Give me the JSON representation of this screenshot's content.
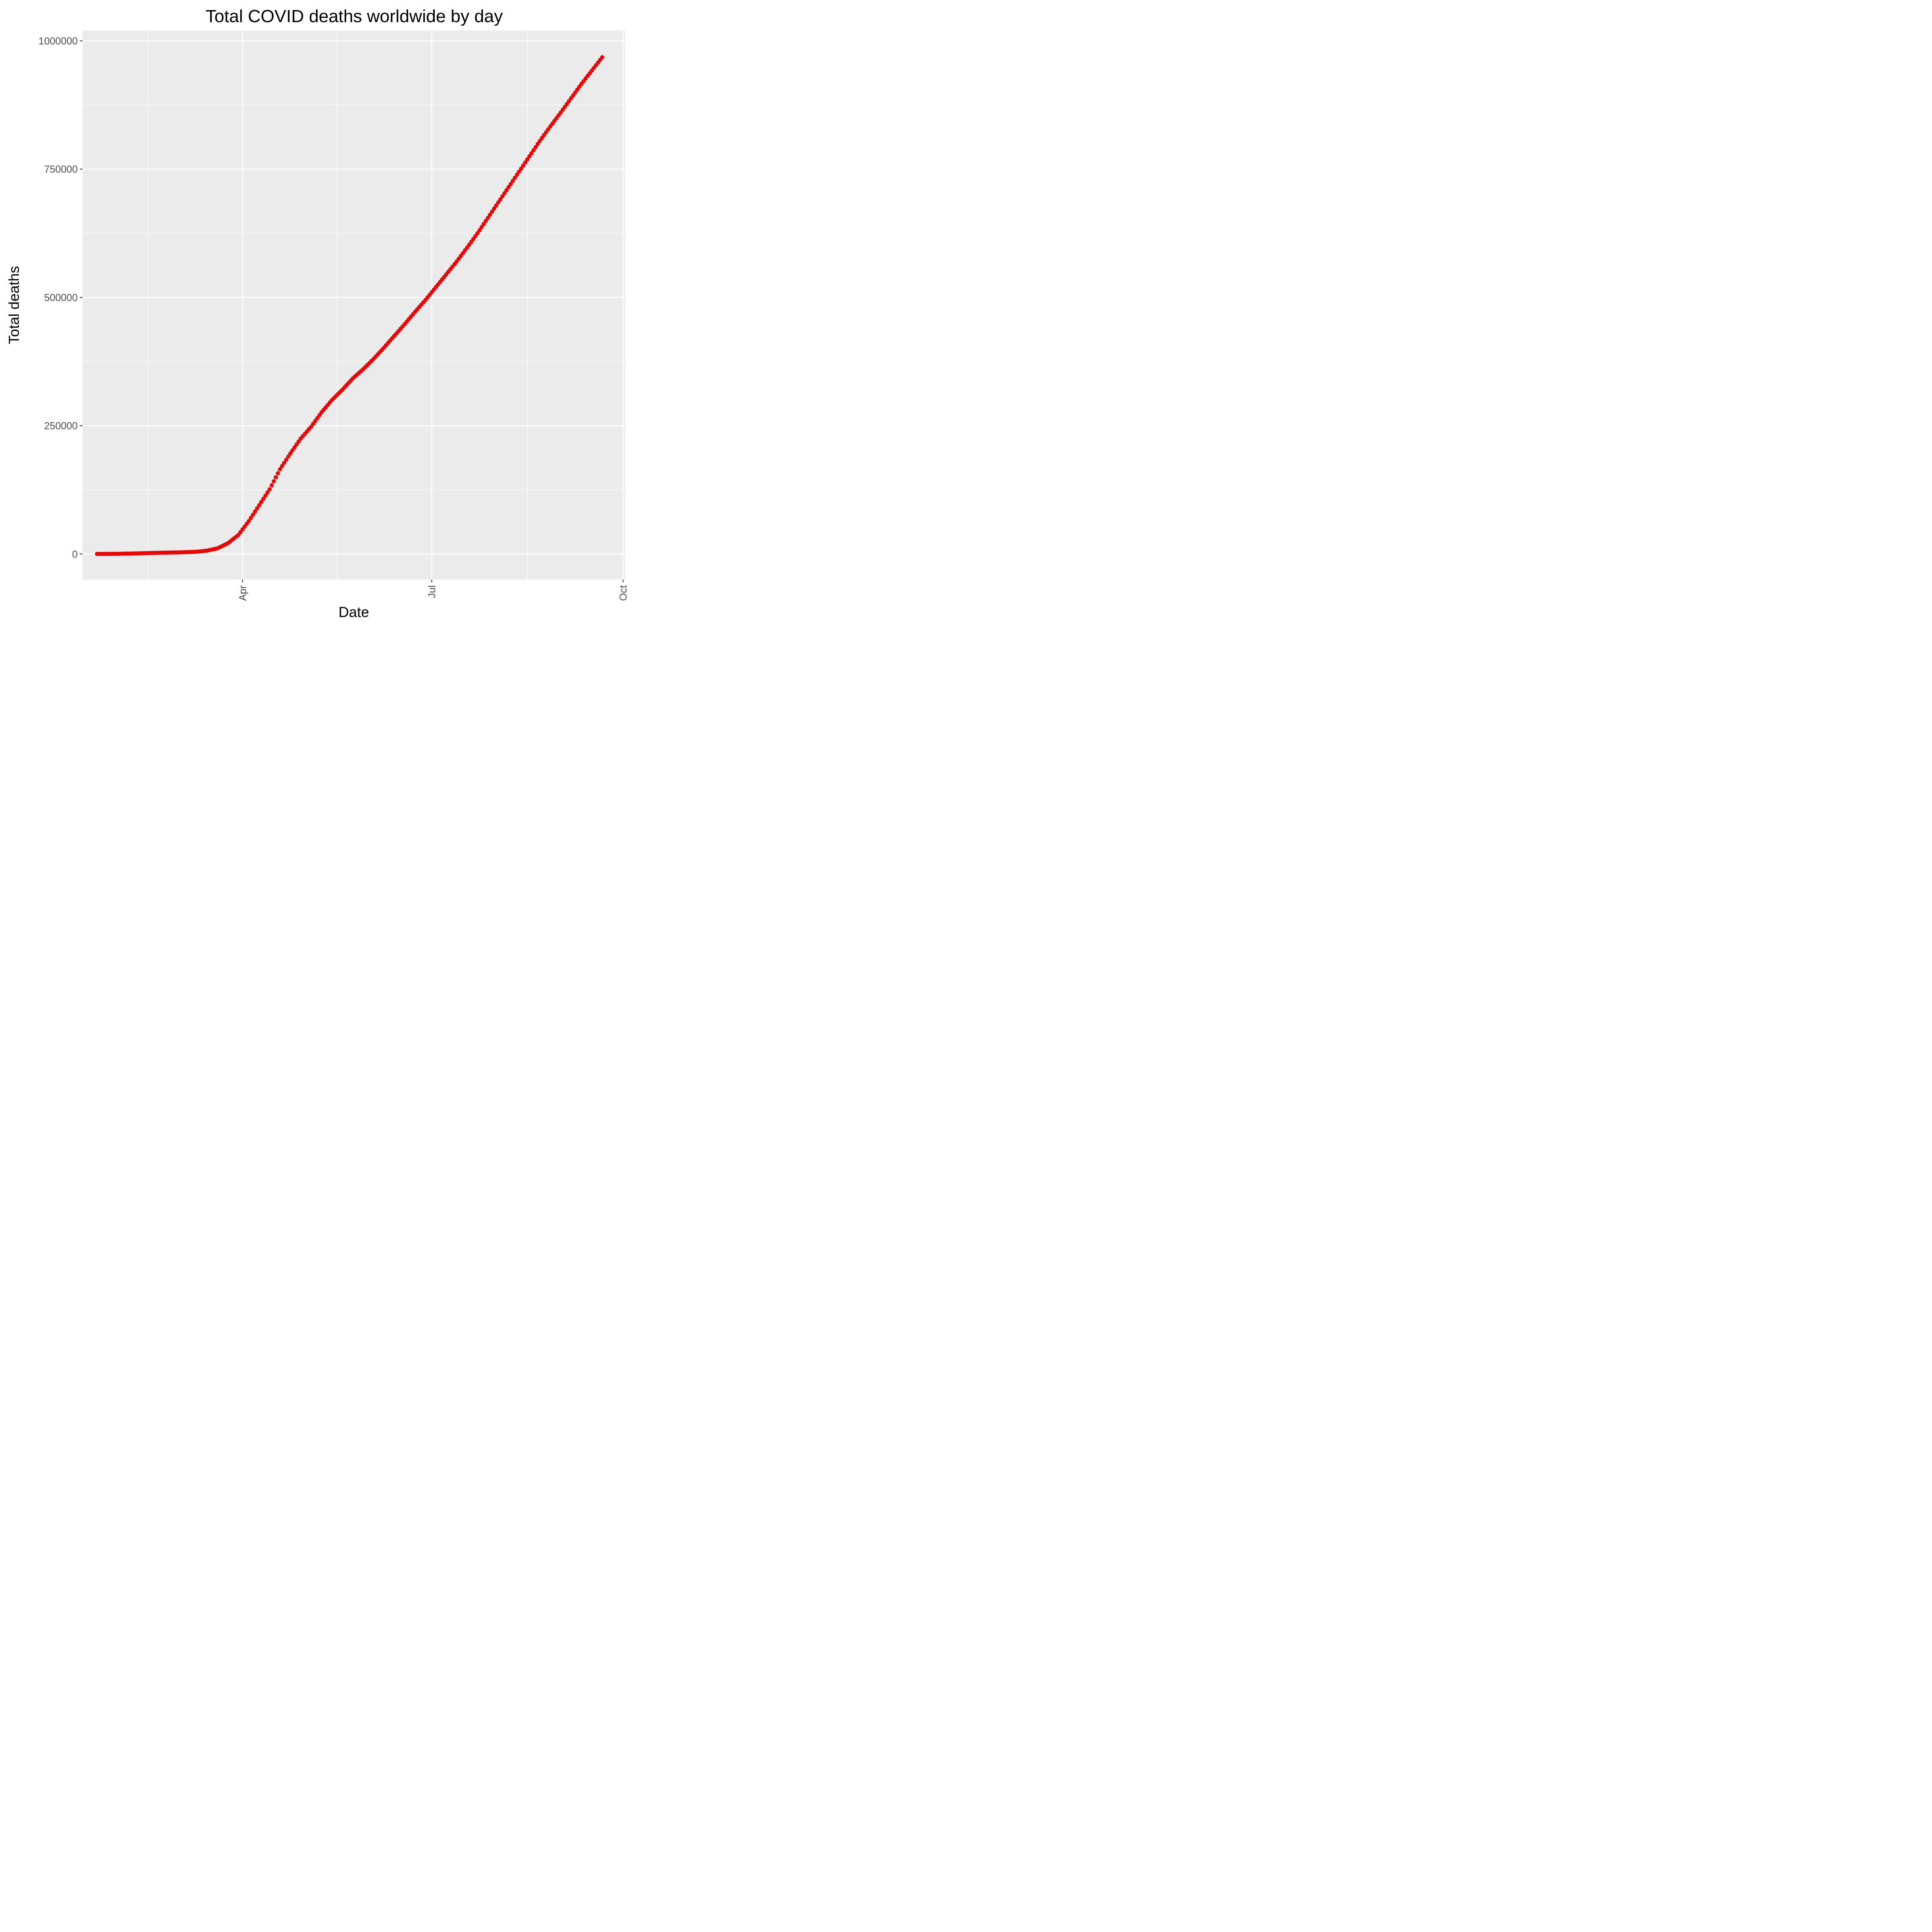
{
  "chart_data": {
    "type": "scatter",
    "title": "Total COVID deaths worldwide by day",
    "xlabel": "Date",
    "ylabel": "Total deaths",
    "x_ticks": [
      {
        "label": "Apr",
        "date": "2020-04-01"
      },
      {
        "label": "Jul",
        "date": "2020-07-01"
      },
      {
        "label": "Oct",
        "date": "2020-10-01"
      }
    ],
    "y_ticks": [
      0,
      250000,
      500000,
      750000,
      1000000
    ],
    "ylim": [
      -50000,
      1020000
    ],
    "xlim": [
      "2020-01-15",
      "2020-10-02"
    ],
    "grid": true,
    "background": "#ebebeb",
    "point_color": "#ff0000",
    "series": [
      {
        "points": [
          [
            "2020-01-22",
            17
          ],
          [
            "2020-02-01",
            259
          ],
          [
            "2020-02-10",
            1013
          ],
          [
            "2020-02-20",
            2247
          ],
          [
            "2020-03-01",
            3000
          ],
          [
            "2020-03-10",
            4300
          ],
          [
            "2020-03-15",
            6500
          ],
          [
            "2020-03-20",
            11000
          ],
          [
            "2020-03-25",
            21000
          ],
          [
            "2020-03-30",
            37000
          ],
          [
            "2020-04-04",
            64000
          ],
          [
            "2020-04-09",
            95000
          ],
          [
            "2020-04-14",
            126000
          ],
          [
            "2020-04-19",
            165000
          ],
          [
            "2020-04-24",
            196000
          ],
          [
            "2020-04-29",
            225000
          ],
          [
            "2020-05-04",
            248000
          ],
          [
            "2020-05-09",
            276000
          ],
          [
            "2020-05-14",
            300000
          ],
          [
            "2020-05-19",
            320000
          ],
          [
            "2020-05-24",
            342000
          ],
          [
            "2020-05-29",
            360000
          ],
          [
            "2020-06-03",
            380000
          ],
          [
            "2020-06-08",
            402000
          ],
          [
            "2020-06-13",
            425000
          ],
          [
            "2020-06-18",
            448000
          ],
          [
            "2020-06-23",
            472000
          ],
          [
            "2020-06-28",
            495000
          ],
          [
            "2020-07-03",
            520000
          ],
          [
            "2020-07-08",
            545000
          ],
          [
            "2020-07-13",
            570000
          ],
          [
            "2020-07-18",
            597000
          ],
          [
            "2020-07-23",
            625000
          ],
          [
            "2020-07-28",
            655000
          ],
          [
            "2020-08-02",
            685000
          ],
          [
            "2020-08-07",
            715000
          ],
          [
            "2020-08-12",
            745000
          ],
          [
            "2020-08-17",
            775000
          ],
          [
            "2020-08-22",
            805000
          ],
          [
            "2020-08-27",
            833000
          ],
          [
            "2020-09-01",
            860000
          ],
          [
            "2020-09-06",
            888000
          ],
          [
            "2020-09-11",
            916000
          ],
          [
            "2020-09-16",
            942000
          ],
          [
            "2020-09-21",
            968000
          ]
        ]
      }
    ]
  }
}
